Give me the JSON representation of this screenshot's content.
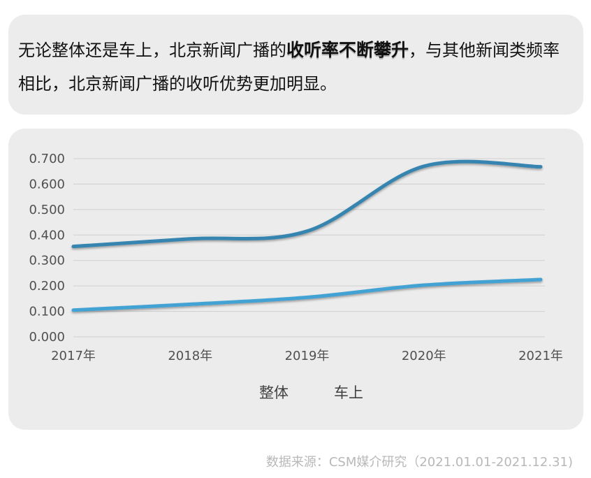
{
  "headline": {
    "part1": "无论整体还是车上，北京新闻广播的",
    "emphasis": "收听率不断攀升",
    "part2": "，与其他新闻类频率相比，北京新闻广播的收听优势更加明显。"
  },
  "source_note": "数据来源：CSM媒介研究（2021.01.01-2021.12.31)",
  "chart_data": {
    "type": "line",
    "title": "",
    "xlabel": "",
    "ylabel": "",
    "categories": [
      "2017年",
      "2018年",
      "2019年",
      "2020年",
      "2021年"
    ],
    "yticks": [
      "0.000",
      "0.100",
      "0.200",
      "0.300",
      "0.400",
      "0.500",
      "0.600",
      "0.700"
    ],
    "ylim": [
      0,
      0.7
    ],
    "grid": true,
    "smooth": true,
    "legend_position": "bottom",
    "series": [
      {
        "name": "整体",
        "values": [
          0.355,
          0.385,
          0.415,
          0.67,
          0.668
        ],
        "color": "#3585b0"
      },
      {
        "name": "车上",
        "values": [
          0.105,
          0.128,
          0.155,
          0.203,
          0.225
        ],
        "color": "#43a2d3"
      }
    ]
  }
}
